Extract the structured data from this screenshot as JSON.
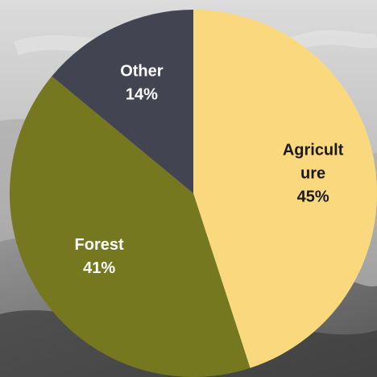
{
  "chart_data": {
    "type": "pie",
    "title": "",
    "slices": [
      {
        "name": "Agriculture",
        "value": 45,
        "label_lines": [
          "Agricult",
          "ure",
          "45%"
        ],
        "color": "#FAD97E",
        "text_color": "#1A1A1A"
      },
      {
        "name": "Forest",
        "value": 41,
        "label_lines": [
          "Forest",
          "41%"
        ],
        "color": "#75781F",
        "text_color": "#FFFFFF"
      },
      {
        "name": "Other",
        "value": 14,
        "label_lines": [
          "Other",
          "14%"
        ],
        "color": "#424451",
        "text_color": "#FFFFFF"
      }
    ],
    "start": "12 o'clock",
    "direction": "clockwise",
    "legend": "none",
    "background": "gray landscape photo"
  }
}
